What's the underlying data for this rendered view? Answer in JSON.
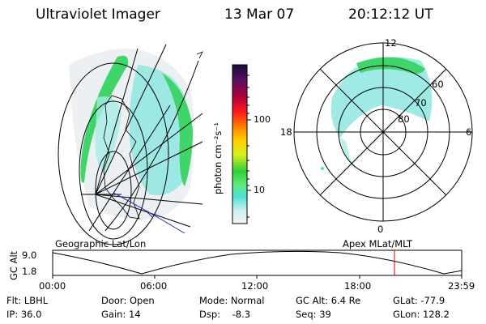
{
  "header": {
    "instrument": "Ultraviolet Imager",
    "date": "13 Mar 07",
    "time": "20:12:12 UT"
  },
  "colorbar": {
    "unit_label": "photon cm⁻²s⁻¹",
    "tick_labels": [
      "100",
      "10"
    ]
  },
  "polar_plot": {
    "mlt_labels": [
      "12",
      "18",
      "6",
      "0"
    ],
    "mlat_labels": [
      "60",
      "70",
      "80"
    ]
  },
  "panel_labels": {
    "left": "Geographic Lat/Lon",
    "right": "Apex MLat/MLT"
  },
  "altitude_strip": {
    "y_axis_label": "GC Alt",
    "y_ticks": [
      "9.0",
      "1.8"
    ],
    "x_ticks": [
      "00:00",
      "06:00",
      "12:00",
      "18:00",
      "23:59"
    ],
    "marker_color": "#cc0000"
  },
  "status": {
    "flt": "Flt: LBHL",
    "ip": "IP: 36.0",
    "door": "Door: Open",
    "gain": "Gain: 14",
    "mode": "Mode: Normal",
    "dsp": "Dsp:    -8.3",
    "gc_alt": "GC Alt: 6.4 Re",
    "seq": "Seq: 39",
    "glat": "GLat: -77.9",
    "glon": "GLon: 128.2"
  }
}
